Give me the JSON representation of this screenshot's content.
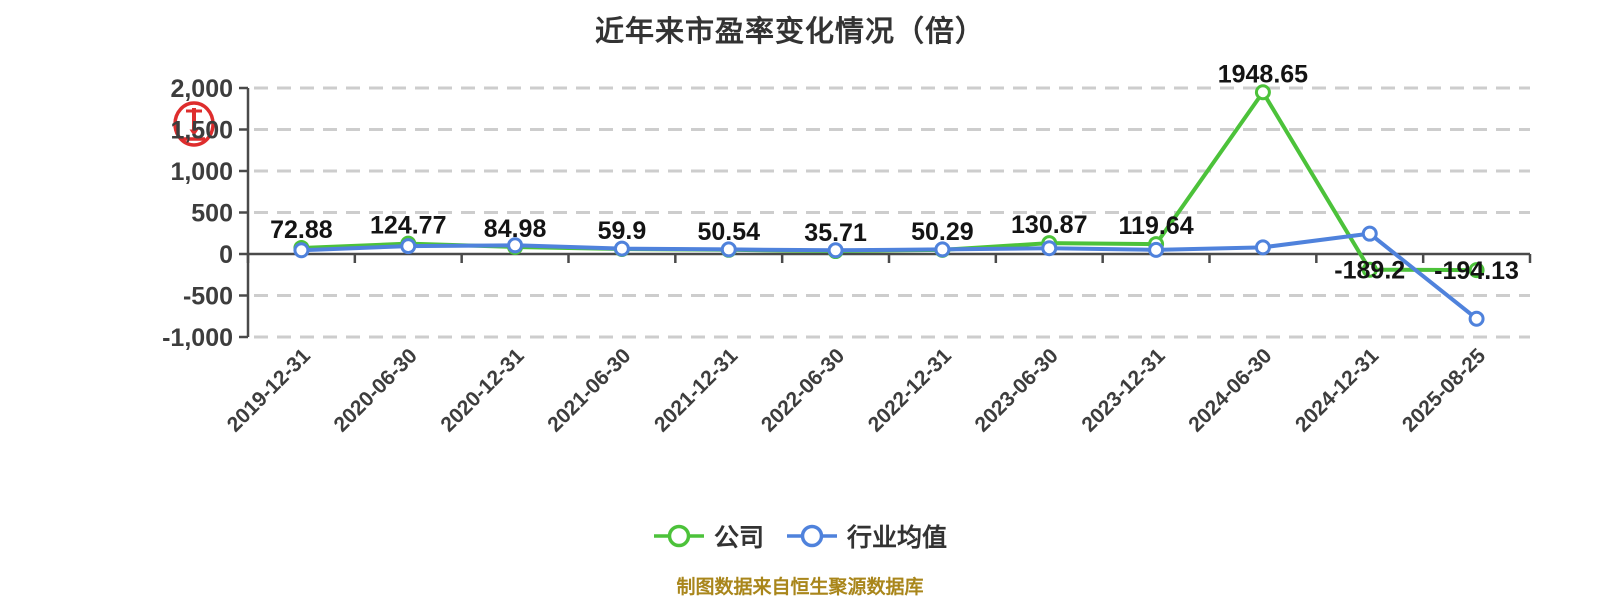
{
  "footer": {
    "source_note": "制图数据来自恒生聚源数据库",
    "color": "#a9861b"
  },
  "icons": {
    "red_stamp_color": "#dc1c1c"
  },
  "style": {
    "background": "#ffffff",
    "axis_color": "#4a4a4a",
    "grid_color": "#cdcdcd",
    "tick_label_color": "#3d3d3d",
    "data_label_color": "#141414"
  },
  "chart_data": {
    "type": "line",
    "title": "近年来市盈率变化情况（倍）",
    "categories": [
      "2019-12-31",
      "2020-06-30",
      "2020-12-31",
      "2021-06-30",
      "2021-12-31",
      "2022-06-30",
      "2022-12-31",
      "2023-06-30",
      "2023-12-31",
      "2024-06-30",
      "2024-12-31",
      "2025-08-25"
    ],
    "series": [
      {
        "name": "公司",
        "color": "#4cc23a",
        "values": [
          72.88,
          124.77,
          84.98,
          59.9,
          50.54,
          35.71,
          50.29,
          130.87,
          119.64,
          1948.65,
          -189.2,
          -194.13
        ],
        "labels": [
          "72.88",
          "124.77",
          "84.98",
          "59.9",
          "50.54",
          "35.71",
          "50.29",
          "130.87",
          "119.64",
          "1948.65",
          "-189.2",
          "-194.13"
        ]
      },
      {
        "name": "行业均值",
        "color": "#4f82dc",
        "values": [
          45,
          95,
          105,
          65,
          55,
          45,
          55,
          70,
          50,
          80,
          245,
          -780
        ],
        "labels": []
      }
    ],
    "ylim": [
      -1000,
      2000
    ],
    "yticks": [
      2000,
      1500,
      1000,
      500,
      0,
      -500,
      -1000
    ],
    "ytick_labels": [
      "2,000",
      "1,500",
      "1,000",
      "500",
      "0",
      "-500",
      "-1,000"
    ],
    "x_label_rotation_deg": -45,
    "grid": "horizontal-dashed",
    "legend_position": "bottom"
  }
}
